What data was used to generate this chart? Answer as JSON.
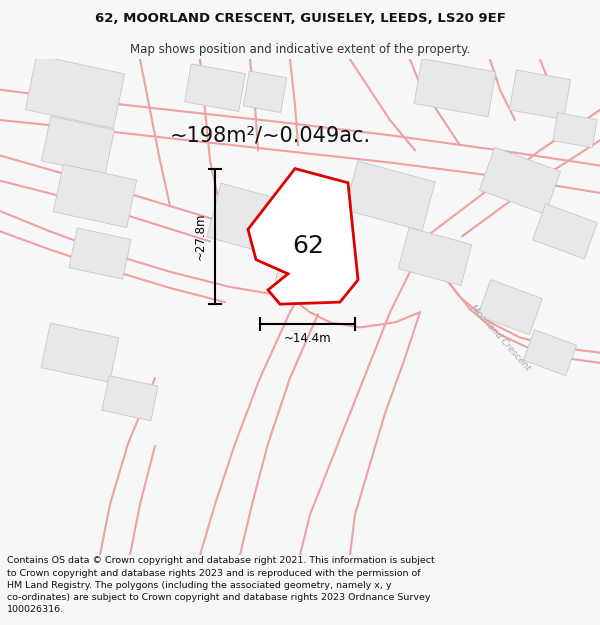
{
  "title_line1": "62, MOORLAND CRESCENT, GUISELEY, LEEDS, LS20 9EF",
  "title_line2": "Map shows position and indicative extent of the property.",
  "area_text": "~198m²/~0.049ac.",
  "label_62": "62",
  "dim_height": "~27.8m",
  "dim_width": "~14.4m",
  "road_label": "Moorland Crescent",
  "footer": "Contains OS data © Crown copyright and database right 2021. This information is subject\nto Crown copyright and database rights 2023 and is reproduced with the permission of\nHM Land Registry. The polygons (including the associated geometry, namely x, y\nco-ordinates) are subject to Crown copyright and database rights 2023 Ordnance Survey\n100026316.",
  "bg_color": "#f7f7f7",
  "map_bg": "#ffffff",
  "building_fill": "#e8e8e8",
  "building_edge": "#c8c8c8",
  "road_fill": "#ffffff",
  "road_line_color": "#f0a0a0",
  "plot_color": "#dd0000",
  "dim_color": "#000000",
  "title_fontsize": 9.5,
  "subtitle_fontsize": 8.5,
  "area_fontsize": 15,
  "label_fontsize": 18,
  "footer_fontsize": 6.8
}
